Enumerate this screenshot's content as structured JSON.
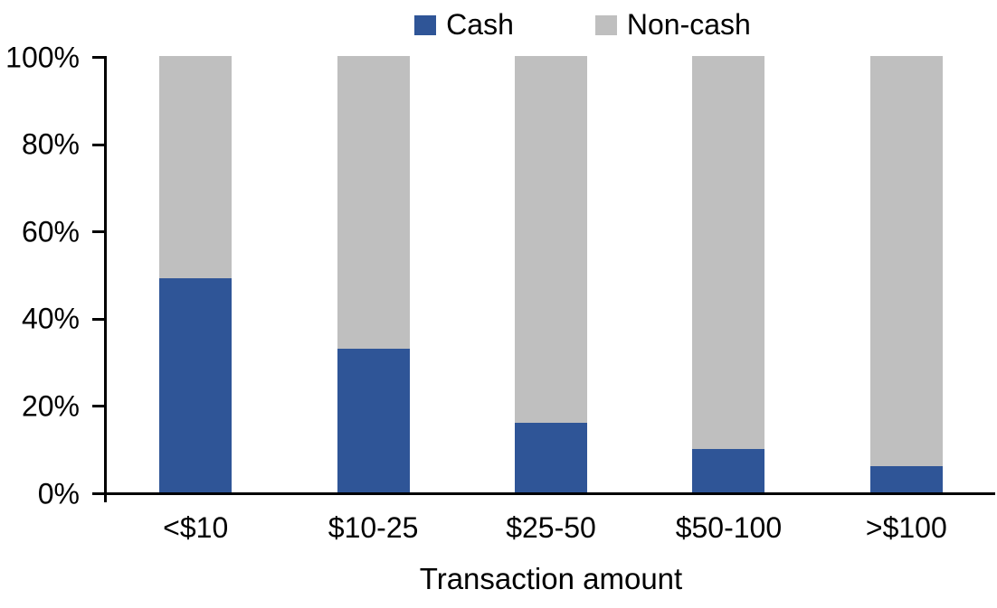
{
  "chart_data": {
    "type": "bar",
    "subtype": "stacked-100-percent",
    "title": "",
    "xlabel": "Transaction amount",
    "ylabel": "",
    "categories": [
      "<$10",
      "$10-25",
      "$25-50",
      "$50-100",
      ">$100"
    ],
    "series": [
      {
        "name": "Cash",
        "color": "#2F5597",
        "values": [
          49,
          33,
          16,
          10,
          6
        ]
      },
      {
        "name": "Non-cash",
        "color": "#BFBFBF",
        "values": [
          51,
          67,
          84,
          90,
          94
        ]
      }
    ],
    "ylim": [
      0,
      100
    ],
    "ytick_labels": [
      "0%",
      "20%",
      "40%",
      "60%",
      "80%",
      "100%"
    ],
    "grid": false,
    "legend_position": "top-center",
    "axis_color": "#000000",
    "background_color": "#FFFFFF"
  }
}
